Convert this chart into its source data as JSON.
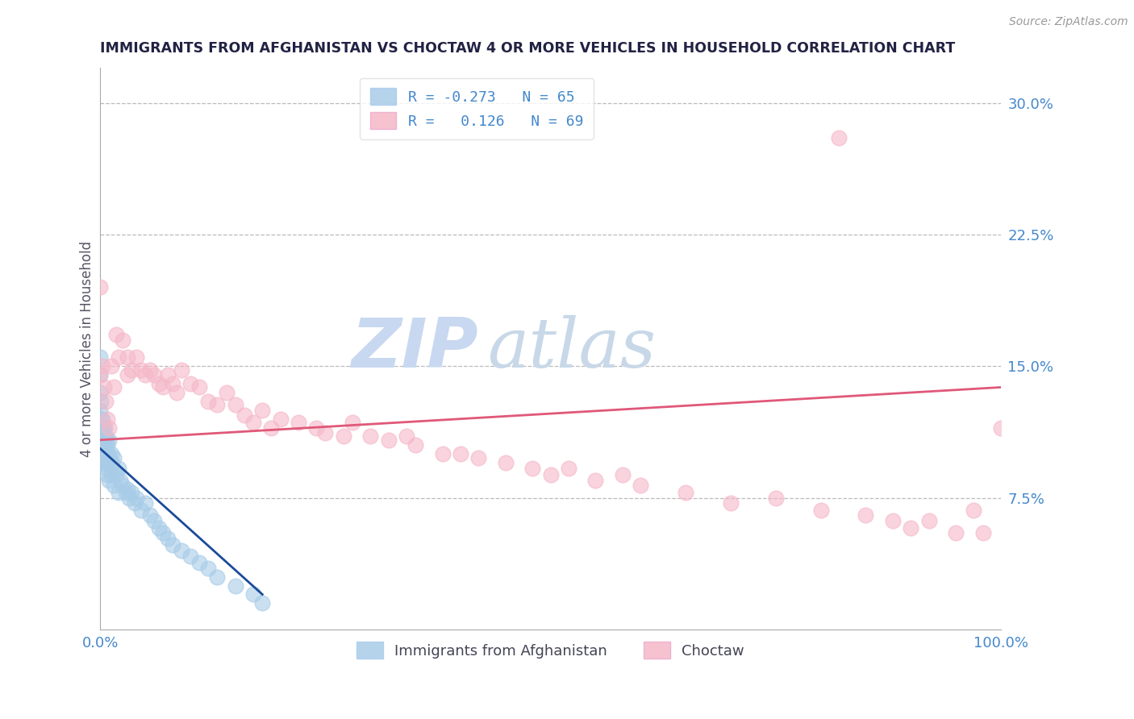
{
  "title": "IMMIGRANTS FROM AFGHANISTAN VS CHOCTAW 4 OR MORE VEHICLES IN HOUSEHOLD CORRELATION CHART",
  "source": "Source: ZipAtlas.com",
  "ylabel": "4 or more Vehicles in Household",
  "legend_labels": [
    "Immigrants from Afghanistan",
    "Choctaw"
  ],
  "r_values": [
    -0.273,
    0.126
  ],
  "n_values": [
    65,
    69
  ],
  "blue_color": "#a8cce8",
  "pink_color": "#f5b8c8",
  "blue_line_color": "#1a4a9a",
  "pink_line_color": "#e05878",
  "axis_label_color": "#4488cc",
  "title_color": "#222244",
  "watermark_color": "#c8d8f0",
  "xlim": [
    0.0,
    1.0
  ],
  "ylim": [
    0.0,
    0.32
  ],
  "ytick_vals": [
    0.075,
    0.15,
    0.225,
    0.3
  ],
  "ytick_labels": [
    "7.5%",
    "15.0%",
    "22.5%",
    "30.0%"
  ],
  "xtick_vals": [
    0.0,
    1.0
  ],
  "xtick_labels": [
    "0.0%",
    "100.0%"
  ],
  "blue_line_x0": 0.0,
  "blue_line_x1": 0.18,
  "blue_line_y0": 0.103,
  "blue_line_y1": 0.02,
  "pink_line_x0": 0.0,
  "pink_line_x1": 1.0,
  "pink_line_y0": 0.108,
  "pink_line_y1": 0.138,
  "blue_points_x": [
    0.0,
    0.0,
    0.0,
    0.0,
    0.0,
    0.0,
    0.001,
    0.001,
    0.001,
    0.001,
    0.001,
    0.001,
    0.002,
    0.002,
    0.002,
    0.003,
    0.003,
    0.004,
    0.004,
    0.005,
    0.005,
    0.005,
    0.006,
    0.006,
    0.007,
    0.007,
    0.008,
    0.008,
    0.009,
    0.01,
    0.01,
    0.01,
    0.012,
    0.012,
    0.013,
    0.015,
    0.015,
    0.016,
    0.018,
    0.02,
    0.02,
    0.022,
    0.025,
    0.028,
    0.03,
    0.032,
    0.035,
    0.038,
    0.04,
    0.045,
    0.05,
    0.055,
    0.06,
    0.065,
    0.07,
    0.075,
    0.08,
    0.09,
    0.1,
    0.11,
    0.12,
    0.13,
    0.15,
    0.17,
    0.18
  ],
  "blue_points_y": [
    0.155,
    0.145,
    0.135,
    0.125,
    0.115,
    0.105,
    0.13,
    0.12,
    0.115,
    0.11,
    0.105,
    0.095,
    0.12,
    0.115,
    0.1,
    0.115,
    0.105,
    0.11,
    0.095,
    0.115,
    0.105,
    0.095,
    0.11,
    0.095,
    0.108,
    0.092,
    0.105,
    0.088,
    0.1,
    0.108,
    0.098,
    0.085,
    0.1,
    0.088,
    0.095,
    0.098,
    0.082,
    0.09,
    0.088,
    0.092,
    0.078,
    0.085,
    0.082,
    0.078,
    0.08,
    0.075,
    0.078,
    0.072,
    0.075,
    0.068,
    0.072,
    0.065,
    0.062,
    0.058,
    0.055,
    0.052,
    0.048,
    0.045,
    0.042,
    0.038,
    0.035,
    0.03,
    0.025,
    0.02,
    0.015
  ],
  "pink_points_x": [
    0.0,
    0.0,
    0.002,
    0.004,
    0.006,
    0.008,
    0.01,
    0.012,
    0.015,
    0.018,
    0.02,
    0.025,
    0.03,
    0.03,
    0.035,
    0.04,
    0.045,
    0.05,
    0.055,
    0.06,
    0.065,
    0.07,
    0.075,
    0.08,
    0.085,
    0.09,
    0.1,
    0.11,
    0.12,
    0.13,
    0.14,
    0.15,
    0.16,
    0.17,
    0.18,
    0.19,
    0.2,
    0.22,
    0.24,
    0.25,
    0.27,
    0.28,
    0.3,
    0.32,
    0.34,
    0.35,
    0.38,
    0.4,
    0.42,
    0.45,
    0.48,
    0.5,
    0.52,
    0.55,
    0.58,
    0.6,
    0.65,
    0.7,
    0.75,
    0.8,
    0.82,
    0.85,
    0.88,
    0.9,
    0.92,
    0.95,
    0.97,
    0.98,
    1.0
  ],
  "pink_points_y": [
    0.145,
    0.195,
    0.15,
    0.138,
    0.13,
    0.12,
    0.115,
    0.15,
    0.138,
    0.168,
    0.155,
    0.165,
    0.155,
    0.145,
    0.148,
    0.155,
    0.148,
    0.145,
    0.148,
    0.145,
    0.14,
    0.138,
    0.145,
    0.14,
    0.135,
    0.148,
    0.14,
    0.138,
    0.13,
    0.128,
    0.135,
    0.128,
    0.122,
    0.118,
    0.125,
    0.115,
    0.12,
    0.118,
    0.115,
    0.112,
    0.11,
    0.118,
    0.11,
    0.108,
    0.11,
    0.105,
    0.1,
    0.1,
    0.098,
    0.095,
    0.092,
    0.088,
    0.092,
    0.085,
    0.088,
    0.082,
    0.078,
    0.072,
    0.075,
    0.068,
    0.28,
    0.065,
    0.062,
    0.058,
    0.062,
    0.055,
    0.068,
    0.055,
    0.115
  ]
}
